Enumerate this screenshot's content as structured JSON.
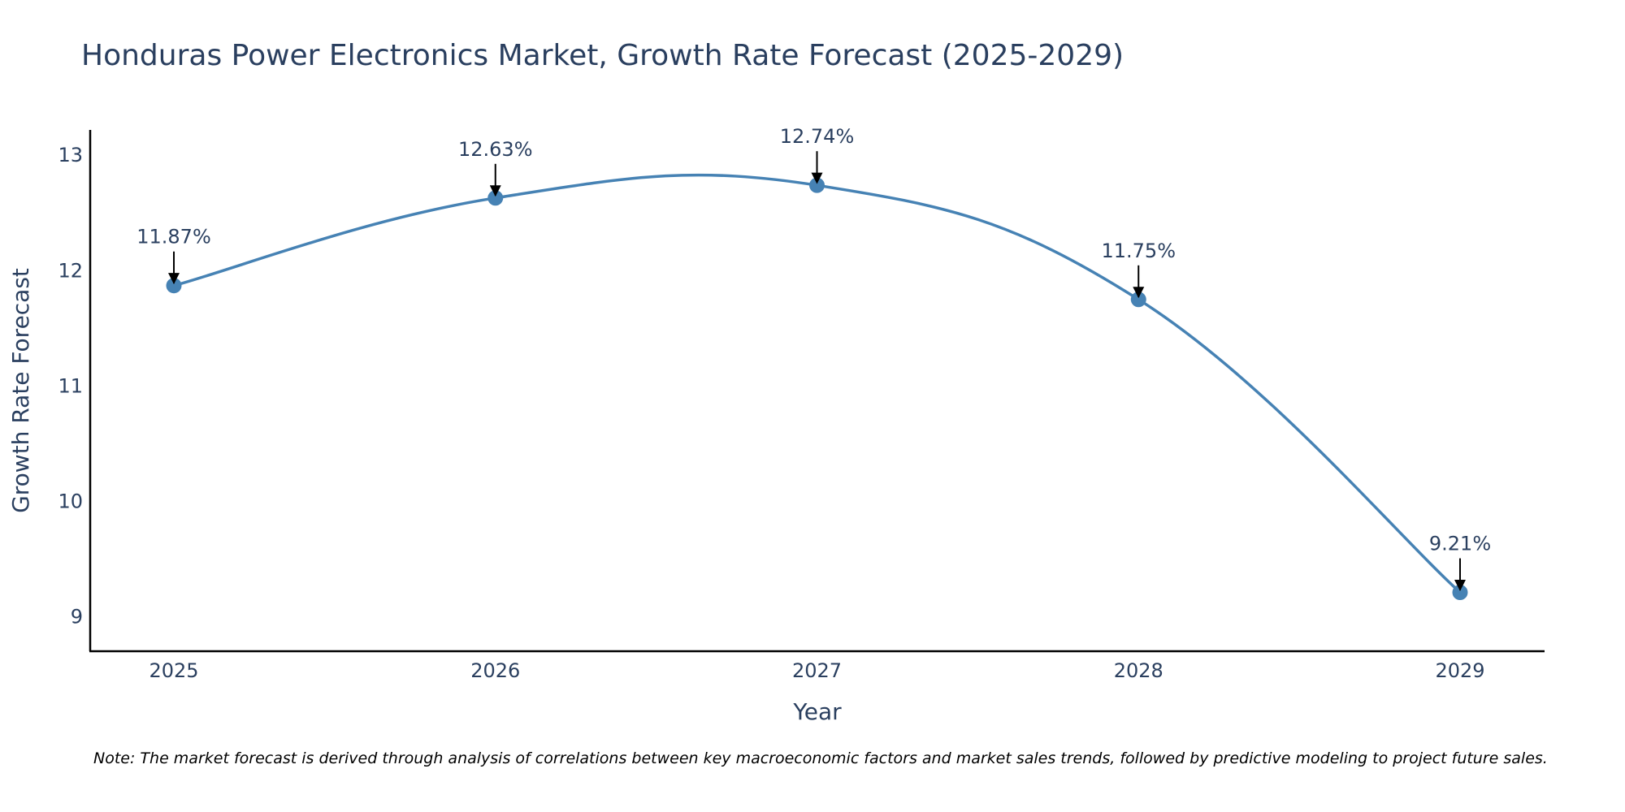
{
  "chart_data": {
    "type": "line",
    "title": "Honduras Power Electronics Market, Growth Rate Forecast (2025-2029)",
    "xlabel": "Year",
    "ylabel": "Growth Rate Forecast",
    "categories": [
      "2025",
      "2026",
      "2027",
      "2028",
      "2029"
    ],
    "series": [
      {
        "name": "Growth Rate Forecast",
        "values": [
          11.87,
          12.63,
          12.74,
          11.75,
          9.21
        ],
        "labels": [
          "11.87%",
          "12.63%",
          "12.74%",
          "11.75%",
          "9.21%"
        ]
      }
    ],
    "yticks": [
      9,
      10,
      11,
      12,
      13
    ],
    "ylim": [
      8.7,
      13.22
    ],
    "line_shape": "spline",
    "grid": false,
    "colors": {
      "line": "#4682b4",
      "text": "#2a3f5f",
      "axis": "#000000",
      "arrow": "#000000"
    },
    "note": "Note: The market forecast is derived through analysis of correlations between key macroeconomic factors and market sales trends, followed by predictive modeling to project future sales."
  }
}
